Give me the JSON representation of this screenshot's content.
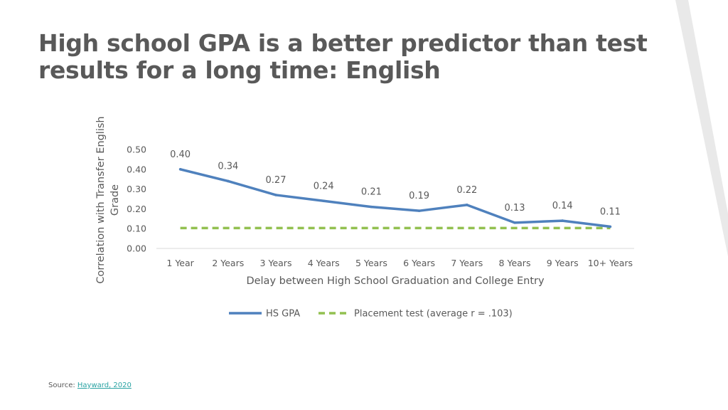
{
  "slide": {
    "title": "High school GPA is a better predictor than test results for a long time: English",
    "source_label": "Source:",
    "source_link_text": "Hayward, 2020"
  },
  "colors": {
    "hs_gpa": "#4f81bd",
    "placement": "#92c050",
    "text": "#595959",
    "link": "#2aa3a3",
    "decoration": "#e9e9e9"
  },
  "chart_data": {
    "type": "line",
    "title": "",
    "xlabel": "Delay between High School Graduation and College Entry",
    "ylabel": "Correlation with Transfer English Grade",
    "categories": [
      "1 Year",
      "2 Years",
      "3 Years",
      "4 Years",
      "5 Years",
      "6 Years",
      "7 Years",
      "8 Years",
      "9 Years",
      "10+ Years"
    ],
    "ylim": [
      0,
      0.5
    ],
    "yticks": [
      "0.00",
      "0.10",
      "0.20",
      "0.30",
      "0.40",
      "0.50"
    ],
    "grid": false,
    "legend_position": "bottom",
    "series": [
      {
        "name": "HS GPA",
        "style": "solid",
        "values": [
          0.4,
          0.34,
          0.27,
          0.24,
          0.21,
          0.19,
          0.22,
          0.13,
          0.14,
          0.11
        ],
        "labels": [
          "0.40",
          "0.34",
          "0.27",
          "0.24",
          "0.21",
          "0.19",
          "0.22",
          "0.13",
          "0.14",
          "0.11"
        ]
      },
      {
        "name": "Placement test (average r = .103)",
        "style": "dashed",
        "values": [
          0.103,
          0.103,
          0.103,
          0.103,
          0.103,
          0.103,
          0.103,
          0.103,
          0.103,
          0.103
        ]
      }
    ]
  }
}
